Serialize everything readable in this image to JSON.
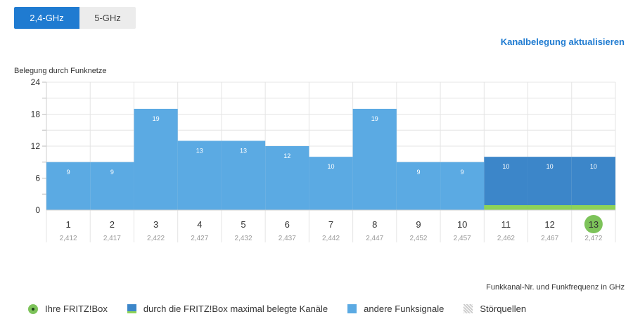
{
  "tabs": [
    {
      "label": "2,4-GHz",
      "active": true
    },
    {
      "label": "5-GHz",
      "active": false
    }
  ],
  "refresh_link": "Kanalbelegung aktualisieren",
  "chart_data": {
    "type": "bar",
    "ylabel": "Belegung durch Funknetze",
    "xlabel": "Funkkanal-Nr. und Funkfrequenz in GHz",
    "ylim": [
      0,
      24
    ],
    "yticks": [
      0,
      6,
      12,
      18,
      24
    ],
    "categories": [
      "1",
      "2",
      "3",
      "4",
      "5",
      "6",
      "7",
      "8",
      "9",
      "10",
      "11",
      "12",
      "13"
    ],
    "frequencies": [
      "2,412",
      "2,417",
      "2,422",
      "2,427",
      "2,432",
      "2,437",
      "2,442",
      "2,447",
      "2,452",
      "2,457",
      "2,462",
      "2,467",
      "2,472"
    ],
    "values": [
      9,
      9,
      19,
      13,
      13,
      12,
      10,
      19,
      9,
      9,
      10,
      10,
      10
    ],
    "fritzbox_max_channels": [
      "11",
      "12",
      "13"
    ],
    "fritzbox_channel": "13",
    "grid": true,
    "colors": {
      "other": "#5baae3",
      "fritzbox_max": "#3c86c9",
      "fritzbox_green": "#8dd358",
      "highlight_circle": "#7dc35a"
    }
  },
  "legend": [
    {
      "label": "Ihre FRITZ!Box",
      "icon": "fritzbox-dot-icon"
    },
    {
      "label": "durch die FRITZ!Box maximal belegte Kanäle",
      "icon": "max-channels-box-icon"
    },
    {
      "label": "andere Funksignale",
      "icon": "other-signals-box-icon"
    },
    {
      "label": "Störquellen",
      "icon": "interference-hatch-icon"
    }
  ]
}
